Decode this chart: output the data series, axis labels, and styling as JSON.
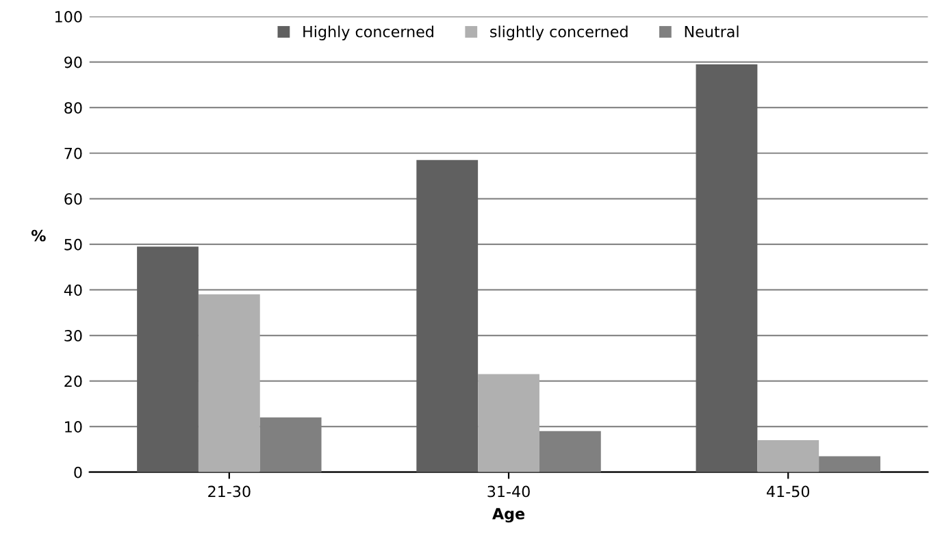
{
  "chart_data": {
    "type": "bar",
    "xlabel": "Age",
    "ylabel": "%",
    "categories": [
      "21-30",
      "31-40",
      "41-50"
    ],
    "series": [
      {
        "name": "Highly concerned",
        "color": "#606060",
        "values": [
          49.5,
          68.5,
          89.5
        ]
      },
      {
        "name": "slightly concerned",
        "color": "#b0b0b0",
        "values": [
          39,
          21.5,
          7
        ]
      },
      {
        "name": "Neutral",
        "color": "#808080",
        "values": [
          12,
          9,
          3.5
        ]
      }
    ],
    "ylim": [
      0,
      100
    ],
    "yticks": [
      0,
      10,
      20,
      30,
      40,
      50,
      60,
      70,
      80,
      90,
      100
    ],
    "grid": "y",
    "legend": "top"
  }
}
